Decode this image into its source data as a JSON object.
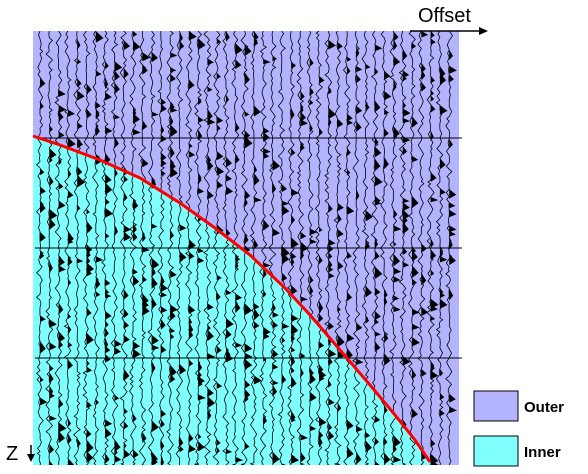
{
  "axes": {
    "x_label": "Offset",
    "z_label": "Z"
  },
  "regions": {
    "outer": {
      "label": "Outer",
      "color": "#b3b3ff"
    },
    "inner": {
      "label": "Inner",
      "color": "#80ffff"
    }
  },
  "boundary_color": "#ff0000",
  "legend": [
    {
      "key": "outer",
      "label": "Outer",
      "color": "#b3b3ff"
    },
    {
      "key": "inner",
      "label": "Inner",
      "color": "#80ffff"
    }
  ]
}
